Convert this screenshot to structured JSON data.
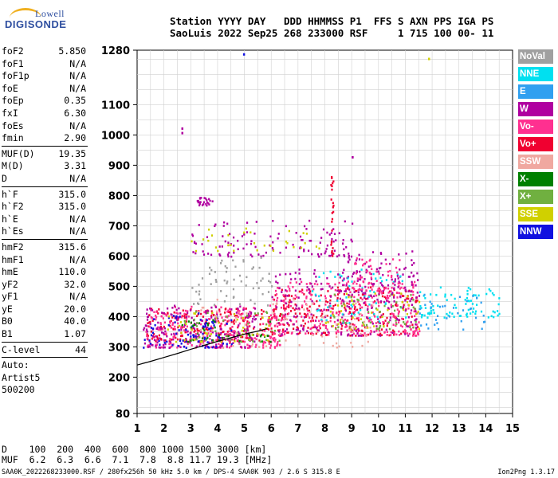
{
  "logo": {
    "line1": "Lowell",
    "line2": "DIGISONDE"
  },
  "header": {
    "line1": "Station YYYY DAY   DDD HHMMSS P1  FFS S AXN PPS IGA PS",
    "line2": "SaoLuis 2022 Sep25 268 233000 RSF     1 715 100 00- 11"
  },
  "params": {
    "group1": [
      {
        "k": "foF2",
        "v": "5.850"
      },
      {
        "k": "foF1",
        "v": "N/A"
      },
      {
        "k": "foF1p",
        "v": "N/A"
      },
      {
        "k": "foE",
        "v": "N/A"
      },
      {
        "k": "foEp",
        "v": "0.35"
      },
      {
        "k": "fxI",
        "v": "6.30"
      },
      {
        "k": "foEs",
        "v": "N/A"
      },
      {
        "k": "fmin",
        "v": "2.90"
      }
    ],
    "group2": [
      {
        "k": "MUF(D)",
        "v": "19.35"
      },
      {
        "k": "M(D)",
        "v": "3.31"
      },
      {
        "k": "D",
        "v": "N/A"
      }
    ],
    "group3": [
      {
        "k": "h`F",
        "v": "315.0"
      },
      {
        "k": "h`F2",
        "v": "315.0"
      },
      {
        "k": "h`E",
        "v": "N/A"
      },
      {
        "k": "h`Es",
        "v": "N/A"
      }
    ],
    "group4": [
      {
        "k": "hmF2",
        "v": "315.6"
      },
      {
        "k": "hmF1",
        "v": "N/A"
      },
      {
        "k": "hmE",
        "v": "110.0"
      },
      {
        "k": "yF2",
        "v": "32.0"
      },
      {
        "k": "yF1",
        "v": "N/A"
      },
      {
        "k": "yE",
        "v": "20.0"
      },
      {
        "k": "B0",
        "v": "40.0"
      },
      {
        "k": "B1",
        "v": "1.07"
      }
    ],
    "group5": [
      {
        "k": "C-level",
        "v": "44"
      }
    ],
    "auto": [
      "Auto:",
      "Artist5",
      "500200"
    ]
  },
  "legend": [
    {
      "label": "NoVal",
      "color": "#a0a0a0"
    },
    {
      "label": "NNE",
      "color": "#00e0f0"
    },
    {
      "label": "E",
      "color": "#30a0f0"
    },
    {
      "label": "W",
      "color": "#b000a0"
    },
    {
      "label": "Vo-",
      "color": "#ff3090"
    },
    {
      "label": "Vo+",
      "color": "#f00030"
    },
    {
      "label": "SSW",
      "color": "#f0a8a0"
    },
    {
      "label": "X-",
      "color": "#008000"
    },
    {
      "label": "X+",
      "color": "#70b040"
    },
    {
      "label": "SSE",
      "color": "#d0d000"
    },
    {
      "label": "NNW",
      "color": "#1010e0"
    }
  ],
  "muf_table": {
    "line1": "D    100  200  400  600  800 1000 1500 3000 [km]",
    "line2": "MUF  6.2  6.3  6.6  7.1  7.8  8.8 11.7 19.3 [MHz]"
  },
  "footer": "SAA0K_2022268233000.RSF / 280fx256h 50 kHz 5.0 km / DPS-4 SAA0K 903 / 2.6 S 315.8 E",
  "version": "Ion2Png 1.3.17",
  "chart_data": {
    "type": "scatter",
    "title": "",
    "xlabel": "",
    "ylabel": "",
    "xlim": [
      1,
      15
    ],
    "ylim": [
      80,
      1280
    ],
    "x_ticks": [
      1,
      2,
      3,
      4,
      5,
      6,
      7,
      8,
      9,
      10,
      11,
      12,
      13,
      14,
      15
    ],
    "y_ticks": [
      80,
      200,
      300,
      400,
      500,
      600,
      700,
      800,
      900,
      1000,
      1100,
      1280
    ],
    "grid": true,
    "legend_position": "right",
    "trace": {
      "name": "",
      "x": [
        1.0,
        1.5,
        2.0,
        2.5,
        3.0,
        3.5,
        4.0,
        4.5,
        5.0,
        5.5,
        5.85
      ],
      "y": [
        240,
        252,
        265,
        278,
        292,
        305,
        318,
        330,
        342,
        352,
        360
      ]
    },
    "clusters": [
      {
        "series": "Vo+",
        "x": [
          1.3,
          6.0
        ],
        "y": [
          320,
          430
        ],
        "n": 220
      },
      {
        "series": "Vo-",
        "x": [
          1.3,
          6.5
        ],
        "y": [
          300,
          440
        ],
        "n": 260
      },
      {
        "series": "W",
        "x": [
          1.2,
          5.5
        ],
        "y": [
          300,
          440
        ],
        "n": 180
      },
      {
        "series": "NNW",
        "x": [
          1.2,
          4.5
        ],
        "y": [
          300,
          420
        ],
        "n": 80
      },
      {
        "series": "X-",
        "x": [
          2.5,
          6.0
        ],
        "y": [
          320,
          400
        ],
        "n": 40
      },
      {
        "series": "X+",
        "x": [
          2.5,
          6.5
        ],
        "y": [
          320,
          420
        ],
        "n": 40
      },
      {
        "series": "SSE",
        "x": [
          2.0,
          6.0
        ],
        "y": [
          320,
          420
        ],
        "n": 40
      },
      {
        "series": "Vo+",
        "x": [
          6.0,
          11.5
        ],
        "y": [
          340,
          500
        ],
        "n": 260
      },
      {
        "series": "Vo-",
        "x": [
          6.0,
          11.5
        ],
        "y": [
          340,
          520
        ],
        "n": 300
      },
      {
        "series": "W",
        "x": [
          6.0,
          11.5
        ],
        "y": [
          340,
          560
        ],
        "n": 180
      },
      {
        "series": "NNE",
        "x": [
          7.5,
          11.0
        ],
        "y": [
          380,
          560
        ],
        "n": 60
      },
      {
        "series": "X+",
        "x": [
          8.0,
          11.5
        ],
        "y": [
          360,
          480
        ],
        "n": 50
      },
      {
        "series": "SSE",
        "x": [
          8.0,
          11.5
        ],
        "y": [
          360,
          480
        ],
        "n": 40
      },
      {
        "series": "W",
        "x": [
          8.5,
          11.5
        ],
        "y": [
          450,
          620
        ],
        "n": 100
      },
      {
        "series": "Vo-",
        "x": [
          9.0,
          10.8
        ],
        "y": [
          480,
          600
        ],
        "n": 60
      },
      {
        "series": "NNE",
        "x": [
          11.5,
          14.5
        ],
        "y": [
          400,
          500
        ],
        "n": 80
      },
      {
        "series": "E",
        "x": [
          11.5,
          14.0
        ],
        "y": [
          360,
          480
        ],
        "n": 40
      },
      {
        "series": "W",
        "x": [
          3.0,
          9.0
        ],
        "y": [
          600,
          720
        ],
        "n": 120
      },
      {
        "series": "SSE",
        "x": [
          3.0,
          8.0
        ],
        "y": [
          620,
          700
        ],
        "n": 30
      },
      {
        "series": "W",
        "x": [
          3.2,
          3.8
        ],
        "y": [
          770,
          800
        ],
        "n": 25
      },
      {
        "series": "Vo+",
        "x": [
          8.2,
          8.3
        ],
        "y": [
          600,
          870
        ],
        "n": 25
      },
      {
        "series": "NoVal",
        "x": [
          3.0,
          6.0
        ],
        "y": [
          440,
          600
        ],
        "n": 60
      },
      {
        "series": "SSW",
        "x": [
          3.0,
          10.0
        ],
        "y": [
          300,
          460
        ],
        "n": 80
      }
    ],
    "outliers": [
      {
        "series": "NNW",
        "x": 4.95,
        "y": 1270
      },
      {
        "series": "W",
        "x": 2.65,
        "y": 1010
      },
      {
        "series": "W",
        "x": 2.65,
        "y": 1025
      },
      {
        "series": "SSE",
        "x": 11.85,
        "y": 1255
      },
      {
        "series": "W",
        "x": 9.0,
        "y": 930
      }
    ]
  }
}
